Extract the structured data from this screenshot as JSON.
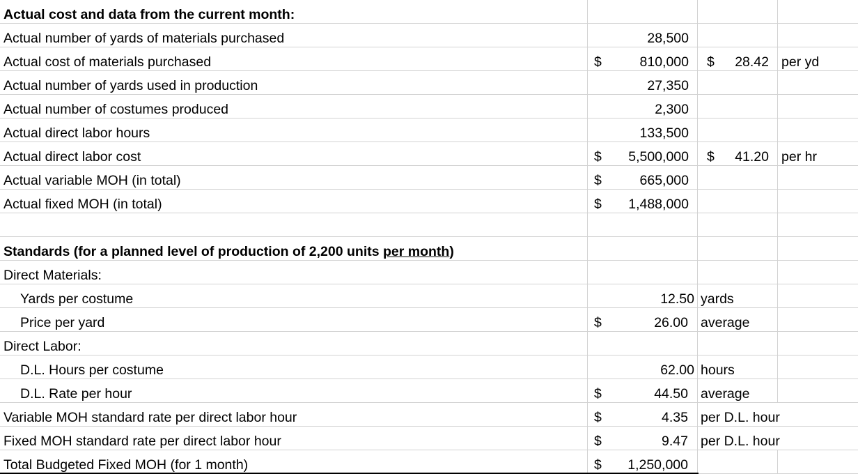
{
  "colors": {
    "gridline": "#d2d2d2",
    "text": "#000000",
    "thick_border": "#000000"
  },
  "rows": [
    {
      "a": "Actual cost and data from the current month:"
    },
    {
      "a": "Actual number of yards of materials purchased",
      "b_val": "28,500"
    },
    {
      "a": "Actual cost of materials purchased",
      "b_sym": "$",
      "b_val": "810,000",
      "c_sym": "$",
      "c_val": "28.42",
      "d": "per yd"
    },
    {
      "a": "Actual number of yards used in production",
      "b_val": "27,350"
    },
    {
      "a": "Actual number of costumes produced",
      "b_val": "2,300"
    },
    {
      "a": "Actual direct labor hours",
      "b_val": "133,500"
    },
    {
      "a": "Actual direct labor cost",
      "b_sym": "$",
      "b_val": "5,500,000",
      "c_sym": "$",
      "c_val": "41.20",
      "d": "per hr"
    },
    {
      "a": "Actual variable MOH (in total)",
      "b_sym": "$",
      "b_val": "665,000"
    },
    {
      "a": "Actual fixed MOH (in total)",
      "b_sym": "$",
      "b_val": "1,488,000"
    },
    {},
    {
      "a_prefix": "Standards (for a planned level of production of 2,200 units ",
      "a_underline": "per month",
      "a_suffix": ")"
    },
    {
      "a": "Direct Materials:"
    },
    {
      "a": "Yards per costume",
      "b_val": "12.50",
      "c_text": "yards"
    },
    {
      "a": "Price per yard",
      "b_sym": "$",
      "b_val": "26.00",
      "c_text": "average"
    },
    {
      "a": "Direct Labor:"
    },
    {
      "a": "D.L. Hours per costume",
      "b_val": "62.00",
      "c_text": "hours"
    },
    {
      "a": "D.L. Rate per hour",
      "b_sym": "$",
      "b_val": "44.50",
      "c_text": "average"
    },
    {
      "a": "Variable MOH standard rate per direct labor hour",
      "b_sym": "$",
      "b_val": "4.35",
      "c_text": "per D.L. hour"
    },
    {
      "a": "Fixed MOH standard rate per direct labor hour",
      "b_sym": "$",
      "b_val": "9.47",
      "c_text": "per D.L. hour"
    },
    {
      "a": "Total Budgeted Fixed MOH (for 1 month)",
      "b_sym": "$",
      "b_val": "1,250,000"
    }
  ]
}
